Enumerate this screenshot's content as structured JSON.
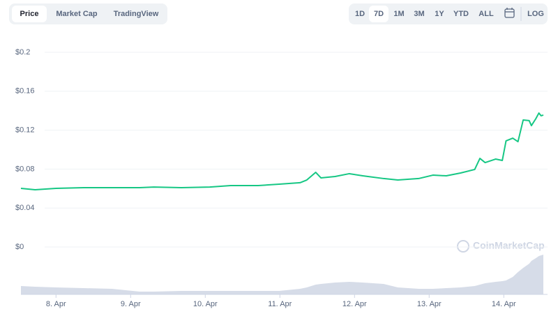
{
  "ui": {
    "tabs": [
      "Price",
      "Market Cap",
      "TradingView"
    ],
    "ranges": [
      "1D",
      "7D",
      "1M",
      "3M",
      "1Y",
      "YTD",
      "ALL"
    ],
    "log": "LOG",
    "watermark": "CoinMarketCap"
  },
  "chart_data": {
    "type": "line",
    "x": [
      7.53,
      7.72,
      8.0,
      8.37,
      8.75,
      9.12,
      9.31,
      9.68,
      10.06,
      10.34,
      10.71,
      10.99,
      11.27,
      11.36,
      11.48,
      11.55,
      11.74,
      11.93,
      12.11,
      12.39,
      12.58,
      12.86,
      13.05,
      13.23,
      13.42,
      13.61,
      13.68,
      13.75,
      13.89,
      13.98,
      14.03,
      14.12,
      14.19,
      14.26,
      14.34,
      14.37,
      14.43,
      14.47,
      14.5,
      14.53
    ],
    "series": [
      {
        "color": "#16c784",
        "values": [
          0.0602,
          0.0588,
          0.0602,
          0.0609,
          0.0609,
          0.0609,
          0.0616,
          0.0609,
          0.0616,
          0.0631,
          0.0631,
          0.0645,
          0.066,
          0.0688,
          0.0767,
          0.071,
          0.0724,
          0.0753,
          0.0731,
          0.0703,
          0.0688,
          0.0703,
          0.0738,
          0.0731,
          0.076,
          0.0796,
          0.091,
          0.0867,
          0.0903,
          0.0889,
          0.109,
          0.1118,
          0.1082,
          0.1305,
          0.1298,
          0.1247,
          0.1319,
          0.1376,
          0.1348,
          0.1355
        ]
      }
    ],
    "volume": {
      "color": "#cfd6e4",
      "values": [
        12,
        11,
        10,
        9,
        8,
        4,
        4,
        5,
        5,
        5,
        5,
        5,
        8,
        10,
        14,
        15,
        17,
        18,
        17,
        15,
        10,
        8,
        8,
        9,
        10,
        12,
        14,
        16,
        18,
        19,
        20,
        25,
        32,
        38,
        44,
        48,
        52,
        55,
        56,
        57
      ]
    },
    "xlim": [
      7.53,
      14.53
    ],
    "xticks": [
      {
        "value": 8,
        "label": "8. Apr"
      },
      {
        "value": 9,
        "label": "9. Apr"
      },
      {
        "value": 10,
        "label": "10. Apr"
      },
      {
        "value": 11,
        "label": "11. Apr"
      },
      {
        "value": 12,
        "label": "12. Apr"
      },
      {
        "value": 13,
        "label": "13. Apr"
      },
      {
        "value": 14,
        "label": "14. Apr"
      }
    ],
    "ylim": [
      0,
      0.2
    ],
    "yticks": [
      {
        "value": 0,
        "label": "$0"
      },
      {
        "value": 0.04,
        "label": "$0.04"
      },
      {
        "value": 0.08,
        "label": "$0.08"
      },
      {
        "value": 0.12,
        "label": "$0.12"
      },
      {
        "value": 0.16,
        "label": "$0.16"
      },
      {
        "value": 0.2,
        "label": "$0.2"
      }
    ],
    "grid": true
  }
}
